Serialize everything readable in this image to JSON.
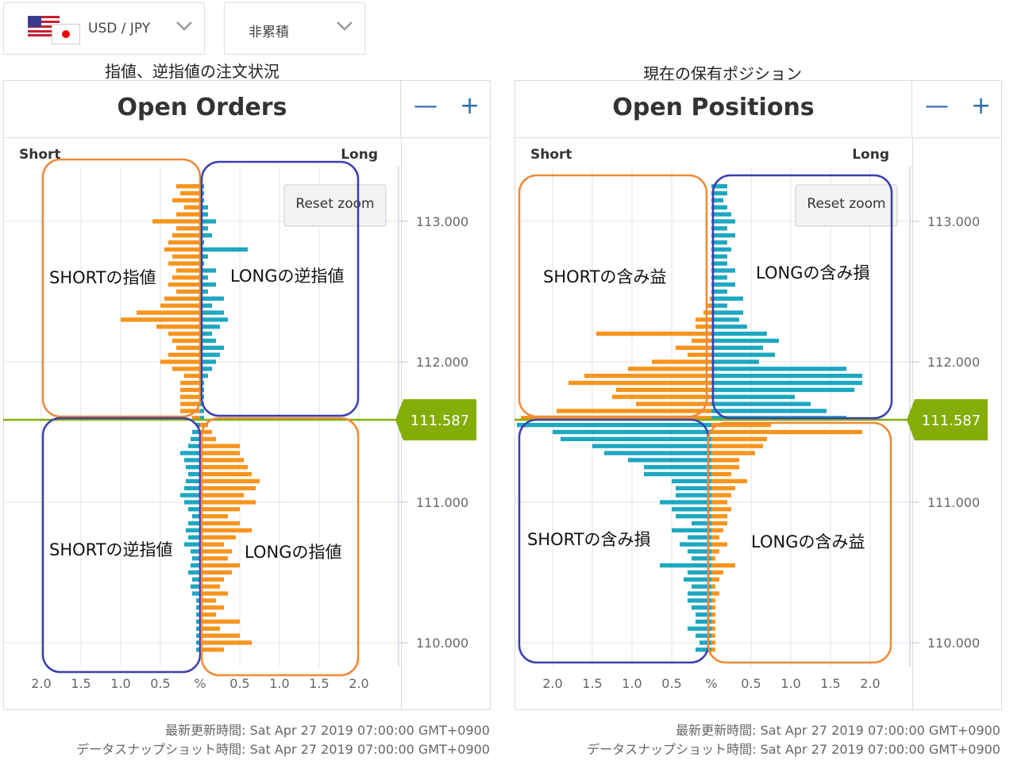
{
  "selectors": {
    "pair_label": "USD / JPY",
    "mode_label": "非累積"
  },
  "captions": {
    "orders": "指値、逆指値の注文状況",
    "positions": "現在の保有ポジション"
  },
  "controls": {
    "minus": "—",
    "plus": "+",
    "reset_zoom": "Reset zoom"
  },
  "colors": {
    "orange": "#f7941d",
    "teal": "#1da7c1",
    "green": "#84ad0a",
    "annot_orange": "#ee8a38",
    "annot_blue": "#3b3fb0"
  },
  "chart_data": [
    {
      "type": "bar",
      "title": "Open Orders",
      "left_label": "Short",
      "right_label": "Long",
      "x_tick_labels": [
        "2.0",
        "1.5",
        "1.0",
        "0.5",
        "%",
        "0.5",
        "1.0",
        "1.5",
        "2.0"
      ],
      "xlim": [
        -2.0,
        2.0
      ],
      "ylim": [
        109.9,
        113.3
      ],
      "y_ticks": [
        113.0,
        112.0,
        111.0,
        110.0
      ],
      "y_tick_labels": [
        "113.000",
        "112.000",
        "111.000",
        "110.000"
      ],
      "current_rate": 111.587,
      "current_rate_label": "111.587",
      "price_levels": [
        113.25,
        113.2,
        113.15,
        113.1,
        113.05,
        113.0,
        112.95,
        112.9,
        112.85,
        112.8,
        112.75,
        112.7,
        112.65,
        112.6,
        112.55,
        112.5,
        112.45,
        112.4,
        112.35,
        112.3,
        112.25,
        112.2,
        112.15,
        112.1,
        112.05,
        112.0,
        111.95,
        111.9,
        111.85,
        111.8,
        111.75,
        111.7,
        111.65,
        111.6,
        111.55,
        111.5,
        111.45,
        111.4,
        111.35,
        111.3,
        111.25,
        111.2,
        111.15,
        111.1,
        111.05,
        111.0,
        110.95,
        110.9,
        110.85,
        110.8,
        110.75,
        110.7,
        110.65,
        110.6,
        110.55,
        110.5,
        110.45,
        110.4,
        110.35,
        110.3,
        110.25,
        110.2,
        110.15,
        110.1,
        110.05,
        110.0,
        109.95
      ],
      "series": [
        {
          "name": "Short",
          "values": [
            0.3,
            0.25,
            0.35,
            0.2,
            0.3,
            0.6,
            0.3,
            0.35,
            0.4,
            0.45,
            0.35,
            0.4,
            0.3,
            0.35,
            0.4,
            0.3,
            0.45,
            0.5,
            0.8,
            1.0,
            0.55,
            0.4,
            0.35,
            0.3,
            0.4,
            0.5,
            0.35,
            0.2,
            0.25,
            0.25,
            0.25,
            0.25,
            0.25,
            0.1,
            0.05,
            0.1,
            0.12,
            0.15,
            0.25,
            0.2,
            0.18,
            0.15,
            0.18,
            0.2,
            0.25,
            0.2,
            0.15,
            0.1,
            0.15,
            0.18,
            0.15,
            0.2,
            0.12,
            0.1,
            0.12,
            0.15,
            0.1,
            0.12,
            0.1,
            0.05,
            0.05,
            0.05,
            0.05,
            0.05,
            0.05,
            0.05,
            0.05
          ]
        },
        {
          "name": "Short",
          "values": [
            0.05,
            0.05,
            0.05,
            0.1,
            0.1,
            0.2,
            0.1,
            0.15,
            0.05,
            0.6,
            0.1,
            0.05,
            0.2,
            0.1,
            0.2,
            0.1,
            0.3,
            0.15,
            0.3,
            0.35,
            0.25,
            0.15,
            0.2,
            0.3,
            0.25,
            0.2,
            0.15,
            0.1,
            0.05,
            0.05,
            0.05,
            0.05,
            0.05,
            0.05,
            0.1,
            0.15,
            0.2,
            0.5,
            0.5,
            0.55,
            0.6,
            0.65,
            0.75,
            0.7,
            0.55,
            0.7,
            0.5,
            0.35,
            0.5,
            0.65,
            0.45,
            0.3,
            0.4,
            0.35,
            0.5,
            0.4,
            0.3,
            0.25,
            0.35,
            0.2,
            0.3,
            0.2,
            0.5,
            0.25,
            0.5,
            0.65,
            0.3
          ]
        }
      ]
    },
    {
      "type": "bar",
      "title": "Open Positions",
      "left_label": "Short",
      "right_label": "Long",
      "x_tick_labels": [
        "2.0",
        "1.5",
        "1.0",
        "0.5",
        "%",
        "0.5",
        "1.0",
        "1.5",
        "2.0"
      ],
      "xlim": [
        -2.0,
        2.0
      ],
      "ylim": [
        109.9,
        113.3
      ],
      "y_ticks": [
        113.0,
        112.0,
        111.0,
        110.0
      ],
      "y_tick_labels": [
        "113.000",
        "112.000",
        "111.000",
        "110.000"
      ],
      "current_rate": 111.587,
      "current_rate_label": "111.587",
      "price_levels": [
        113.25,
        113.2,
        113.15,
        113.1,
        113.05,
        113.0,
        112.95,
        112.9,
        112.85,
        112.8,
        112.75,
        112.7,
        112.65,
        112.6,
        112.55,
        112.5,
        112.45,
        112.4,
        112.35,
        112.3,
        112.25,
        112.2,
        112.15,
        112.1,
        112.05,
        112.0,
        111.95,
        111.9,
        111.85,
        111.8,
        111.75,
        111.7,
        111.65,
        111.6,
        111.55,
        111.5,
        111.45,
        111.4,
        111.35,
        111.3,
        111.25,
        111.2,
        111.15,
        111.1,
        111.05,
        111.0,
        110.95,
        110.9,
        110.85,
        110.8,
        110.75,
        110.7,
        110.65,
        110.6,
        110.55,
        110.5,
        110.45,
        110.4,
        110.35,
        110.3,
        110.25,
        110.2,
        110.15,
        110.1,
        110.05,
        110.0,
        109.95
      ],
      "series": [
        {
          "name": "Short",
          "values": [
            0,
            0,
            0,
            0,
            0,
            0,
            0,
            0,
            0,
            0,
            0,
            0,
            0,
            0,
            0,
            0,
            0.02,
            0.05,
            0.1,
            0.2,
            0.2,
            1.45,
            0.25,
            0.45,
            0.3,
            0.75,
            1.05,
            1.6,
            1.8,
            1.2,
            1.25,
            0.95,
            1.95,
            2.4,
            2.45,
            2.0,
            1.9,
            1.5,
            1.35,
            1.05,
            0.85,
            0.85,
            0.5,
            0.45,
            0.45,
            0.65,
            0.5,
            0.45,
            0.25,
            0.5,
            0.3,
            0.4,
            0.3,
            0.25,
            0.65,
            0.3,
            0.35,
            0.25,
            0.3,
            0.3,
            0.25,
            0.2,
            0.2,
            0.3,
            0.2,
            0.15,
            0.2
          ]
        },
        {
          "name": "Long",
          "values": [
            0.2,
            0.2,
            0.15,
            0.2,
            0.25,
            0.3,
            0.2,
            0.3,
            0.2,
            0.25,
            0.2,
            0.2,
            0.3,
            0.2,
            0.3,
            0.2,
            0.4,
            0.2,
            0.4,
            0.35,
            0.45,
            0.7,
            0.85,
            0.65,
            0.8,
            0.6,
            1.7,
            1.9,
            1.9,
            1.8,
            1.05,
            1.25,
            1.45,
            1.7,
            0.75,
            1.9,
            0.7,
            0.65,
            0.55,
            0.35,
            0.35,
            0.25,
            0.45,
            0.3,
            0.25,
            0.2,
            0.25,
            0.2,
            0.2,
            0.15,
            0.1,
            0.2,
            0.1,
            0.05,
            0.3,
            0.15,
            0.1,
            0.05,
            0.1,
            0.05,
            0.05,
            0.05,
            0.05,
            0.05,
            0.05,
            0.05,
            0.05
          ]
        }
      ]
    }
  ],
  "annotations": {
    "orders": {
      "upper_left": "SHORTの指値",
      "upper_right": "LONGの逆指値",
      "lower_left": "SHORTの逆指値",
      "lower_right": "LONGの指値"
    },
    "positions": {
      "upper_left": "SHORTの含み益",
      "upper_right": "LONGの含み損",
      "lower_left": "SHORTの含み損",
      "lower_right": "LONGの含み益"
    }
  },
  "footer": {
    "orders_updated": "最新更新時間: Sat Apr 27 2019 07:00:00 GMT+0900",
    "orders_snapshot": "データスナップショット時間: Sat Apr 27 2019 07:00:00 GMT+0900",
    "positions_updated": "最新更新時間: Sat Apr 27 2019 07:00:00 GMT+0900",
    "positions_snapshot": "データスナップショット時間: Sat Apr 27 2019 07:00:00 GMT+0900"
  }
}
